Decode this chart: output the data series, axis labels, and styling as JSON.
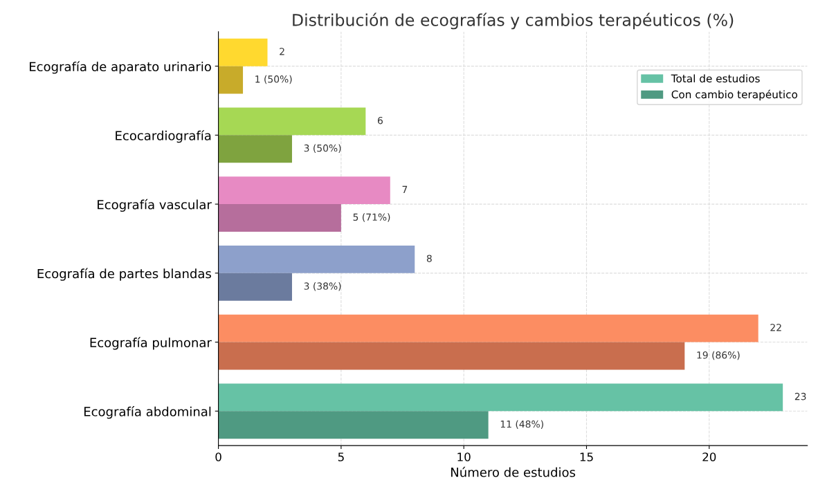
{
  "chart_data": {
    "type": "bar",
    "orientation": "horizontal",
    "title": "Distribución de ecografías y cambios terapéuticos (%)",
    "xlabel": "Número de estudios",
    "categories": [
      "Ecografía de aparato urinario",
      "Ecocardiografía",
      "Ecografía vascular",
      "Ecografía de partes blandas",
      "Ecografía pulmonar",
      "Ecografía abdominal"
    ],
    "series": [
      {
        "name": "Total de estudios",
        "color": "#66c2a5",
        "colors": [
          "#ffd92f",
          "#a6d854",
          "#e78ac3",
          "#8da0cb",
          "#fc8d62",
          "#66c2a5"
        ],
        "values": [
          2,
          6,
          7,
          8,
          22,
          23
        ],
        "value_labels": [
          "2",
          "6",
          "7",
          "8",
          "22",
          "23"
        ]
      },
      {
        "name": "Con cambio terapéutico",
        "color": "#4f9a82",
        "colors": [
          "#c8ab2a",
          "#7fa33f",
          "#b66e9c",
          "#6b7b9e",
          "#c96e4e",
          "#4f9a82"
        ],
        "values": [
          1,
          3,
          5,
          3,
          19,
          11
        ],
        "value_labels": [
          "1 (50%)",
          "3 (50%)",
          "5 (71%)",
          "3 (38%)",
          "19 (86%)",
          "11 (48%)"
        ]
      }
    ],
    "xlim": [
      0,
      24
    ],
    "xticks": [
      0,
      5,
      10,
      15,
      20
    ],
    "grid": true,
    "legend": "top right"
  }
}
